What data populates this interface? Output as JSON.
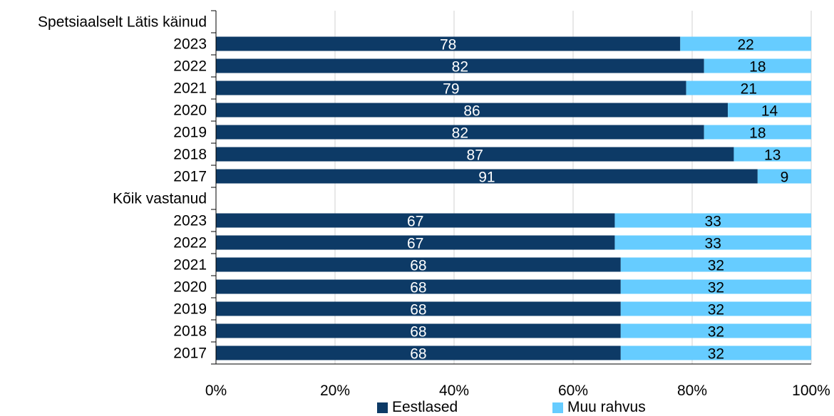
{
  "chart_data": {
    "type": "bar",
    "orientation": "horizontal",
    "stacked": true,
    "percent": true,
    "categories": [
      "Spetsiaalselt Lätis käinud",
      "2023",
      "2022",
      "2021",
      "2020",
      "2019",
      "2018",
      "2017",
      "Kõik vastanud",
      "2023",
      "2022",
      "2021",
      "2020",
      "2019",
      "2018",
      "2017"
    ],
    "series": [
      {
        "name": "Eestlased",
        "color": "#0d3a66",
        "label_color": "#ffffff",
        "values": [
          null,
          78,
          82,
          79,
          86,
          82,
          87,
          91,
          null,
          67,
          67,
          68,
          68,
          68,
          68,
          68
        ]
      },
      {
        "name": "Muu rahvus",
        "color": "#66ccff",
        "label_color": "#000000",
        "values": [
          null,
          22,
          18,
          21,
          14,
          18,
          13,
          9,
          null,
          33,
          33,
          32,
          32,
          32,
          32,
          32
        ]
      }
    ],
    "xaxis": {
      "ticks": [
        0,
        20,
        40,
        60,
        80,
        100
      ],
      "tick_labels": [
        "0%",
        "20%",
        "40%",
        "60%",
        "80%",
        "100%"
      ],
      "range": [
        0,
        100
      ]
    },
    "grid": "vertical",
    "legend": "bottom",
    "title": "",
    "xlabel": "",
    "ylabel": ""
  }
}
